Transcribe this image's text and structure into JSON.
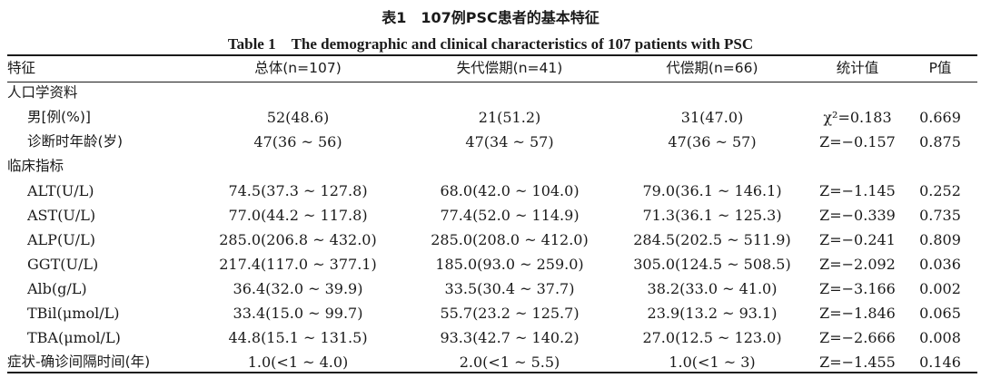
{
  "caption": {
    "cn": "表1　107例PSC患者的基本特征",
    "en": "Table 1　The demographic and clinical characteristics of 107 patients with PSC"
  },
  "header": [
    "特征",
    "总体(n=107)",
    "失代偿期(n=41)",
    "代偿期(n=66)",
    "统计值",
    "P值"
  ],
  "sections": [
    {
      "label": "人口学资料",
      "rows": [
        {
          "name": "男[例(%)]",
          "total": "52(48.6)",
          "decomp": "21(51.2)",
          "comp": "31(47.0)",
          "stat": "χ²=0.183",
          "p": "0.669"
        },
        {
          "name": "诊断时年龄(岁)",
          "total": "47(36 ~ 56)",
          "decomp": "47(34 ~ 57)",
          "comp": "47(36 ~ 57)",
          "stat": "Z=−0.157",
          "p": "0.875"
        }
      ]
    },
    {
      "label": "临床指标",
      "rows": [
        {
          "name": "ALT(U/L)",
          "total": "74.5(37.3 ~ 127.8)",
          "decomp": "68.0(42.0 ~ 104.0)",
          "comp": "79.0(36.1 ~ 146.1)",
          "stat": "Z=−1.145",
          "p": "0.252"
        },
        {
          "name": "AST(U/L)",
          "total": "77.0(44.2 ~ 117.8)",
          "decomp": "77.4(52.0 ~ 114.9)",
          "comp": "71.3(36.1 ~ 125.3)",
          "stat": "Z=−0.339",
          "p": "0.735"
        },
        {
          "name": "ALP(U/L)",
          "total": "285.0(206.8 ~ 432.0)",
          "decomp": "285.0(208.0 ~ 412.0)",
          "comp": "284.5(202.5 ~ 511.9)",
          "stat": "Z=−0.241",
          "p": "0.809"
        },
        {
          "name": "GGT(U/L)",
          "total": "217.4(117.0 ~ 377.1)",
          "decomp": "185.0(93.0 ~ 259.0)",
          "comp": "305.0(124.5 ~ 508.5)",
          "stat": "Z=−2.092",
          "p": "0.036"
        },
        {
          "name": "Alb(g/L)",
          "total": "36.4(32.0 ~ 39.9)",
          "decomp": "33.5(30.4 ~ 37.7)",
          "comp": "38.2(33.0 ~ 41.0)",
          "stat": "Z=−3.166",
          "p": "0.002"
        },
        {
          "name": "TBil(μmol/L)",
          "total": "33.4(15.0 ~ 99.7)",
          "decomp": "55.7(23.2 ~ 125.7)",
          "comp": "23.9(13.2 ~ 93.1)",
          "stat": "Z=−1.846",
          "p": "0.065"
        },
        {
          "name": "TBA(μmol/L)",
          "total": "44.8(15.1 ~ 131.5)",
          "decomp": "93.3(42.7 ~ 140.2)",
          "comp": "27.0(12.5 ~ 123.0)",
          "stat": "Z=−2.666",
          "p": "0.008"
        }
      ]
    }
  ],
  "final_row": {
    "name": "症状-确诊间隔时间(年)",
    "total": "1.0(<1 ~ 4.0)",
    "decomp": "2.0(<1 ~ 5.5)",
    "comp": "1.0(<1 ~ 3)",
    "stat": "Z=−1.455",
    "p": "0.146"
  }
}
